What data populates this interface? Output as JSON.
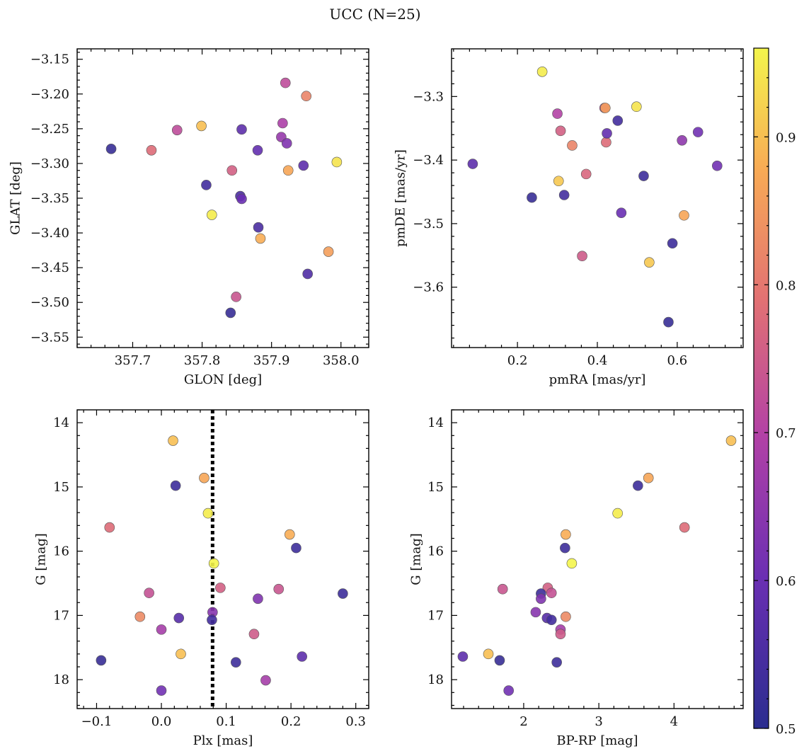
{
  "title": "UCC (N=25)",
  "colorbar": {
    "range": [
      0.5,
      0.96
    ],
    "ticks": [
      0.5,
      0.6,
      0.7,
      0.8,
      0.9
    ],
    "tick_labels": [
      "0.5",
      "0.6",
      "0.7",
      "0.8",
      "0.9"
    ],
    "colormap": "plasma"
  },
  "chart_data": [
    {
      "type": "scatter",
      "xlabel": "GLON [deg]",
      "ylabel": "GLAT [deg]",
      "xlim": [
        357.62,
        358.04
      ],
      "ylim": [
        -3.565,
        -3.135
      ],
      "y_inverted": false,
      "xticks": [
        357.7,
        357.8,
        357.9,
        358.0
      ],
      "xtick_labels": [
        "357.7",
        "357.8",
        "357.9",
        "358.0"
      ],
      "yticks": [
        -3.15,
        -3.2,
        -3.25,
        -3.3,
        -3.35,
        -3.4,
        -3.45,
        -3.5,
        -3.55
      ],
      "ytick_labels": [
        "−3.15",
        "−3.20",
        "−3.25",
        "−3.30",
        "−3.35",
        "−3.40",
        "−3.45",
        "−3.50",
        "−3.55"
      ],
      "points": [
        {
          "x": 357.669,
          "y": -3.279,
          "c": 0.52
        },
        {
          "x": 357.727,
          "y": -3.281,
          "c": 0.78
        },
        {
          "x": 357.764,
          "y": -3.252,
          "c": 0.72
        },
        {
          "x": 357.799,
          "y": -3.246,
          "c": 0.9
        },
        {
          "x": 357.806,
          "y": -3.331,
          "c": 0.54
        },
        {
          "x": 357.814,
          "y": -3.374,
          "c": 0.95
        },
        {
          "x": 357.841,
          "y": -3.515,
          "c": 0.52
        },
        {
          "x": 357.843,
          "y": -3.31,
          "c": 0.76
        },
        {
          "x": 357.849,
          "y": -3.492,
          "c": 0.74
        },
        {
          "x": 357.855,
          "y": -3.347,
          "c": 0.55
        },
        {
          "x": 357.857,
          "y": -3.351,
          "c": 0.6
        },
        {
          "x": 357.857,
          "y": -3.251,
          "c": 0.58
        },
        {
          "x": 357.88,
          "y": -3.281,
          "c": 0.59
        },
        {
          "x": 357.881,
          "y": -3.392,
          "c": 0.55
        },
        {
          "x": 357.884,
          "y": -3.408,
          "c": 0.88
        },
        {
          "x": 357.914,
          "y": -3.262,
          "c": 0.66
        },
        {
          "x": 357.916,
          "y": -3.242,
          "c": 0.69
        },
        {
          "x": 357.92,
          "y": -3.184,
          "c": 0.72
        },
        {
          "x": 357.922,
          "y": -3.271,
          "c": 0.63
        },
        {
          "x": 357.924,
          "y": -3.31,
          "c": 0.87
        },
        {
          "x": 357.946,
          "y": -3.303,
          "c": 0.58
        },
        {
          "x": 357.95,
          "y": -3.203,
          "c": 0.82
        },
        {
          "x": 357.952,
          "y": -3.459,
          "c": 0.56
        },
        {
          "x": 357.982,
          "y": -3.427,
          "c": 0.86
        },
        {
          "x": 357.994,
          "y": -3.298,
          "c": 0.94
        }
      ]
    },
    {
      "type": "scatter",
      "xlabel": "pmRA [mas/yr]",
      "ylabel": "pmDE [mas/yr]",
      "xlim": [
        0.035,
        0.765
      ],
      "ylim": [
        -3.695,
        -3.225
      ],
      "y_inverted": false,
      "xticks": [
        0.2,
        0.4,
        0.6
      ],
      "xtick_labels": [
        "0.2",
        "0.4",
        "0.6"
      ],
      "yticks": [
        -3.3,
        -3.4,
        -3.5,
        -3.6
      ],
      "ytick_labels": [
        "−3.3",
        "−3.4",
        "−3.5",
        "−3.6"
      ],
      "points": [
        {
          "x": 0.088,
          "y": -3.406,
          "c": 0.58
        },
        {
          "x": 0.236,
          "y": -3.459,
          "c": 0.52
        },
        {
          "x": 0.262,
          "y": -3.261,
          "c": 0.95
        },
        {
          "x": 0.3,
          "y": -3.327,
          "c": 0.7
        },
        {
          "x": 0.303,
          "y": -3.433,
          "c": 0.91
        },
        {
          "x": 0.308,
          "y": -3.354,
          "c": 0.76
        },
        {
          "x": 0.317,
          "y": -3.455,
          "c": 0.54
        },
        {
          "x": 0.337,
          "y": -3.377,
          "c": 0.82
        },
        {
          "x": 0.362,
          "y": -3.551,
          "c": 0.75
        },
        {
          "x": 0.372,
          "y": -3.422,
          "c": 0.77
        },
        {
          "x": 0.418,
          "y": -3.318,
          "c": 0.72
        },
        {
          "x": 0.42,
          "y": -3.318,
          "c": 0.86
        },
        {
          "x": 0.422,
          "y": -3.372,
          "c": 0.78
        },
        {
          "x": 0.424,
          "y": -3.358,
          "c": 0.59
        },
        {
          "x": 0.451,
          "y": -3.338,
          "c": 0.54
        },
        {
          "x": 0.46,
          "y": -3.483,
          "c": 0.6
        },
        {
          "x": 0.498,
          "y": -3.316,
          "c": 0.94
        },
        {
          "x": 0.516,
          "y": -3.425,
          "c": 0.53
        },
        {
          "x": 0.53,
          "y": -3.561,
          "c": 0.91
        },
        {
          "x": 0.578,
          "y": -3.655,
          "c": 0.52
        },
        {
          "x": 0.588,
          "y": -3.531,
          "c": 0.53
        },
        {
          "x": 0.612,
          "y": -3.369,
          "c": 0.65
        },
        {
          "x": 0.617,
          "y": -3.487,
          "c": 0.87
        },
        {
          "x": 0.652,
          "y": -3.356,
          "c": 0.61
        },
        {
          "x": 0.7,
          "y": -3.409,
          "c": 0.61
        }
      ]
    },
    {
      "type": "scatter",
      "xlabel": "Plx [mas]",
      "ylabel": "G [mag]",
      "xlim": [
        -0.13,
        0.32
      ],
      "ylim": [
        18.45,
        13.8
      ],
      "y_inverted": true,
      "xticks": [
        -0.1,
        0.0,
        0.1,
        0.2,
        0.3
      ],
      "xtick_labels": [
        "−0.1",
        "0.0",
        "0.1",
        "0.2",
        "0.3"
      ],
      "yticks": [
        14,
        15,
        16,
        17,
        18
      ],
      "ytick_labels": [
        "14",
        "15",
        "16",
        "17",
        "18"
      ],
      "vline": {
        "x": 0.079,
        "style": "dotted"
      },
      "points": [
        {
          "x": 0.018,
          "y": 14.28,
          "c": 0.9
        },
        {
          "x": 0.022,
          "y": 14.98,
          "c": 0.53
        },
        {
          "x": 0.066,
          "y": 14.86,
          "c": 0.87
        },
        {
          "x": 0.072,
          "y": 15.41,
          "c": 0.95
        },
        {
          "x": -0.08,
          "y": 15.63,
          "c": 0.78
        },
        {
          "x": 0.198,
          "y": 15.74,
          "c": 0.88
        },
        {
          "x": 0.208,
          "y": 15.95,
          "c": 0.53
        },
        {
          "x": 0.081,
          "y": 16.19,
          "c": 0.96
        },
        {
          "x": 0.091,
          "y": 16.57,
          "c": 0.76
        },
        {
          "x": 0.181,
          "y": 16.59,
          "c": 0.74
        },
        {
          "x": -0.019,
          "y": 16.65,
          "c": 0.73
        },
        {
          "x": 0.28,
          "y": 16.66,
          "c": 0.53
        },
        {
          "x": 0.149,
          "y": 16.74,
          "c": 0.63
        },
        {
          "x": 0.079,
          "y": 16.95,
          "c": 0.64
        },
        {
          "x": -0.033,
          "y": 17.02,
          "c": 0.83
        },
        {
          "x": 0.027,
          "y": 17.04,
          "c": 0.57
        },
        {
          "x": 0.078,
          "y": 17.07,
          "c": 0.54
        },
        {
          "x": 0.0,
          "y": 17.22,
          "c": 0.68
        },
        {
          "x": 0.143,
          "y": 17.29,
          "c": 0.75
        },
        {
          "x": 0.03,
          "y": 17.6,
          "c": 0.9
        },
        {
          "x": 0.217,
          "y": 17.64,
          "c": 0.58
        },
        {
          "x": -0.093,
          "y": 17.7,
          "c": 0.52
        },
        {
          "x": 0.115,
          "y": 17.73,
          "c": 0.53
        },
        {
          "x": 0.161,
          "y": 18.01,
          "c": 0.68
        },
        {
          "x": 0.0,
          "y": 18.17,
          "c": 0.61
        }
      ]
    },
    {
      "type": "scatter",
      "xlabel": "BP-RP [mag]",
      "ylabel": "G [mag]",
      "xlim": [
        1.04,
        4.92
      ],
      "ylim": [
        18.45,
        13.8
      ],
      "y_inverted": true,
      "xticks": [
        2,
        3,
        4
      ],
      "xtick_labels": [
        "2",
        "3",
        "4"
      ],
      "yticks": [
        14,
        15,
        16,
        17,
        18
      ],
      "ytick_labels": [
        "14",
        "15",
        "16",
        "17",
        "18"
      ],
      "points": [
        {
          "x": 4.76,
          "y": 14.28,
          "c": 0.9
        },
        {
          "x": 3.52,
          "y": 14.98,
          "c": 0.53
        },
        {
          "x": 3.66,
          "y": 14.86,
          "c": 0.87
        },
        {
          "x": 3.25,
          "y": 15.41,
          "c": 0.95
        },
        {
          "x": 4.14,
          "y": 15.63,
          "c": 0.78
        },
        {
          "x": 2.56,
          "y": 15.74,
          "c": 0.88
        },
        {
          "x": 2.55,
          "y": 15.95,
          "c": 0.53
        },
        {
          "x": 2.64,
          "y": 16.19,
          "c": 0.96
        },
        {
          "x": 2.32,
          "y": 16.57,
          "c": 0.76
        },
        {
          "x": 1.72,
          "y": 16.59,
          "c": 0.74
        },
        {
          "x": 2.37,
          "y": 16.65,
          "c": 0.73
        },
        {
          "x": 2.23,
          "y": 16.66,
          "c": 0.53
        },
        {
          "x": 2.23,
          "y": 16.74,
          "c": 0.63
        },
        {
          "x": 2.16,
          "y": 16.95,
          "c": 0.64
        },
        {
          "x": 2.56,
          "y": 17.02,
          "c": 0.83
        },
        {
          "x": 2.31,
          "y": 17.04,
          "c": 0.57
        },
        {
          "x": 2.37,
          "y": 17.07,
          "c": 0.54
        },
        {
          "x": 2.49,
          "y": 17.22,
          "c": 0.68
        },
        {
          "x": 2.49,
          "y": 17.29,
          "c": 0.75
        },
        {
          "x": 1.53,
          "y": 17.6,
          "c": 0.9
        },
        {
          "x": 1.19,
          "y": 17.64,
          "c": 0.58
        },
        {
          "x": 1.68,
          "y": 17.7,
          "c": 0.52
        },
        {
          "x": 2.44,
          "y": 17.73,
          "c": 0.53
        },
        {
          "x": 1.8,
          "y": 18.17,
          "c": 0.61
        }
      ]
    }
  ]
}
